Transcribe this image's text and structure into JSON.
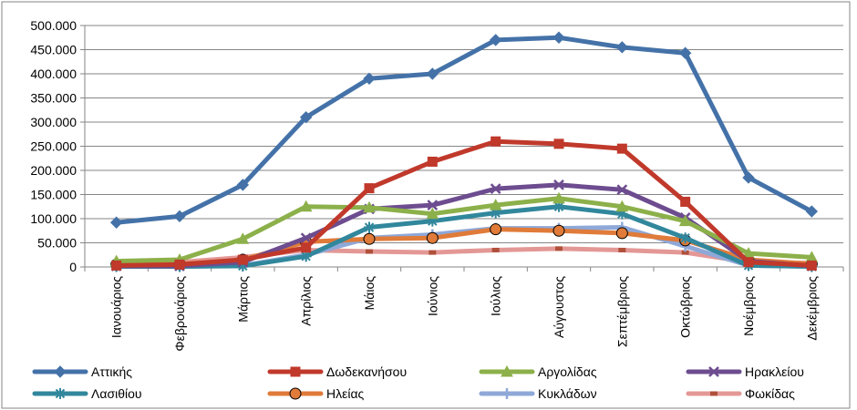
{
  "chart_data": {
    "type": "line",
    "categories": [
      "Ιανουάριος",
      "Φεβρουάριος",
      "Μάρτιος",
      "Απρίλιος",
      "Μάιος",
      "Ιούνιος",
      "Ιούλιος",
      "Αύγουστος",
      "Σεπτέμβριος",
      "Οκτώβριος",
      "Νοέμβριος",
      "Δεκέμβριος"
    ],
    "ylim": [
      0,
      500000
    ],
    "y_ticks": [
      "0",
      "50.000",
      "100.000",
      "150.000",
      "200.000",
      "250.000",
      "300.000",
      "350.000",
      "400.000",
      "450.000",
      "500.000"
    ],
    "grid": "horizontal",
    "legend_position": "bottom",
    "xlabel": "",
    "ylabel": "",
    "title": "",
    "series": [
      {
        "name": "Αττικής",
        "color": "#4472a8",
        "marker": "diamond",
        "values": [
          92000,
          105000,
          170000,
          310000,
          390000,
          400000,
          470000,
          475000,
          455000,
          443000,
          185000,
          115000
        ]
      },
      {
        "name": "Δωδεκανήσου",
        "color": "#c0392b",
        "marker": "square",
        "values": [
          3000,
          5000,
          15000,
          40000,
          163000,
          218000,
          260000,
          255000,
          245000,
          135000,
          10000,
          3000
        ]
      },
      {
        "name": "Αργολίδας",
        "color": "#8cb04a",
        "marker": "triangle",
        "values": [
          12000,
          15000,
          58000,
          125000,
          123000,
          110000,
          128000,
          142000,
          125000,
          95000,
          28000,
          20000
        ]
      },
      {
        "name": "Ηρακλείου",
        "color": "#6d4c8f",
        "marker": "x",
        "values": [
          2000,
          2000,
          10000,
          60000,
          120000,
          128000,
          162000,
          170000,
          160000,
          102000,
          12000,
          2000
        ]
      },
      {
        "name": "Λασιθίου",
        "color": "#31879c",
        "marker": "star",
        "values": [
          1000,
          1000,
          2000,
          22000,
          82000,
          95000,
          112000,
          125000,
          110000,
          60000,
          3000,
          1000
        ]
      },
      {
        "name": "Ηλείας",
        "color": "#e07b39",
        "marker": "circle",
        "values": [
          5000,
          6000,
          15000,
          52000,
          58000,
          60000,
          78000,
          75000,
          70000,
          55000,
          15000,
          6000
        ]
      },
      {
        "name": "Κυκλάδων",
        "color": "#8ea8d8",
        "marker": "plus",
        "values": [
          1000,
          1000,
          3000,
          25000,
          60000,
          67000,
          80000,
          80000,
          82000,
          43000,
          3000,
          1000
        ]
      },
      {
        "name": "Φωκίδας",
        "color": "#e39896",
        "marker": "dash",
        "values": [
          8000,
          10000,
          20000,
          35000,
          32000,
          30000,
          35000,
          38000,
          35000,
          30000,
          10000,
          8000
        ]
      }
    ]
  }
}
